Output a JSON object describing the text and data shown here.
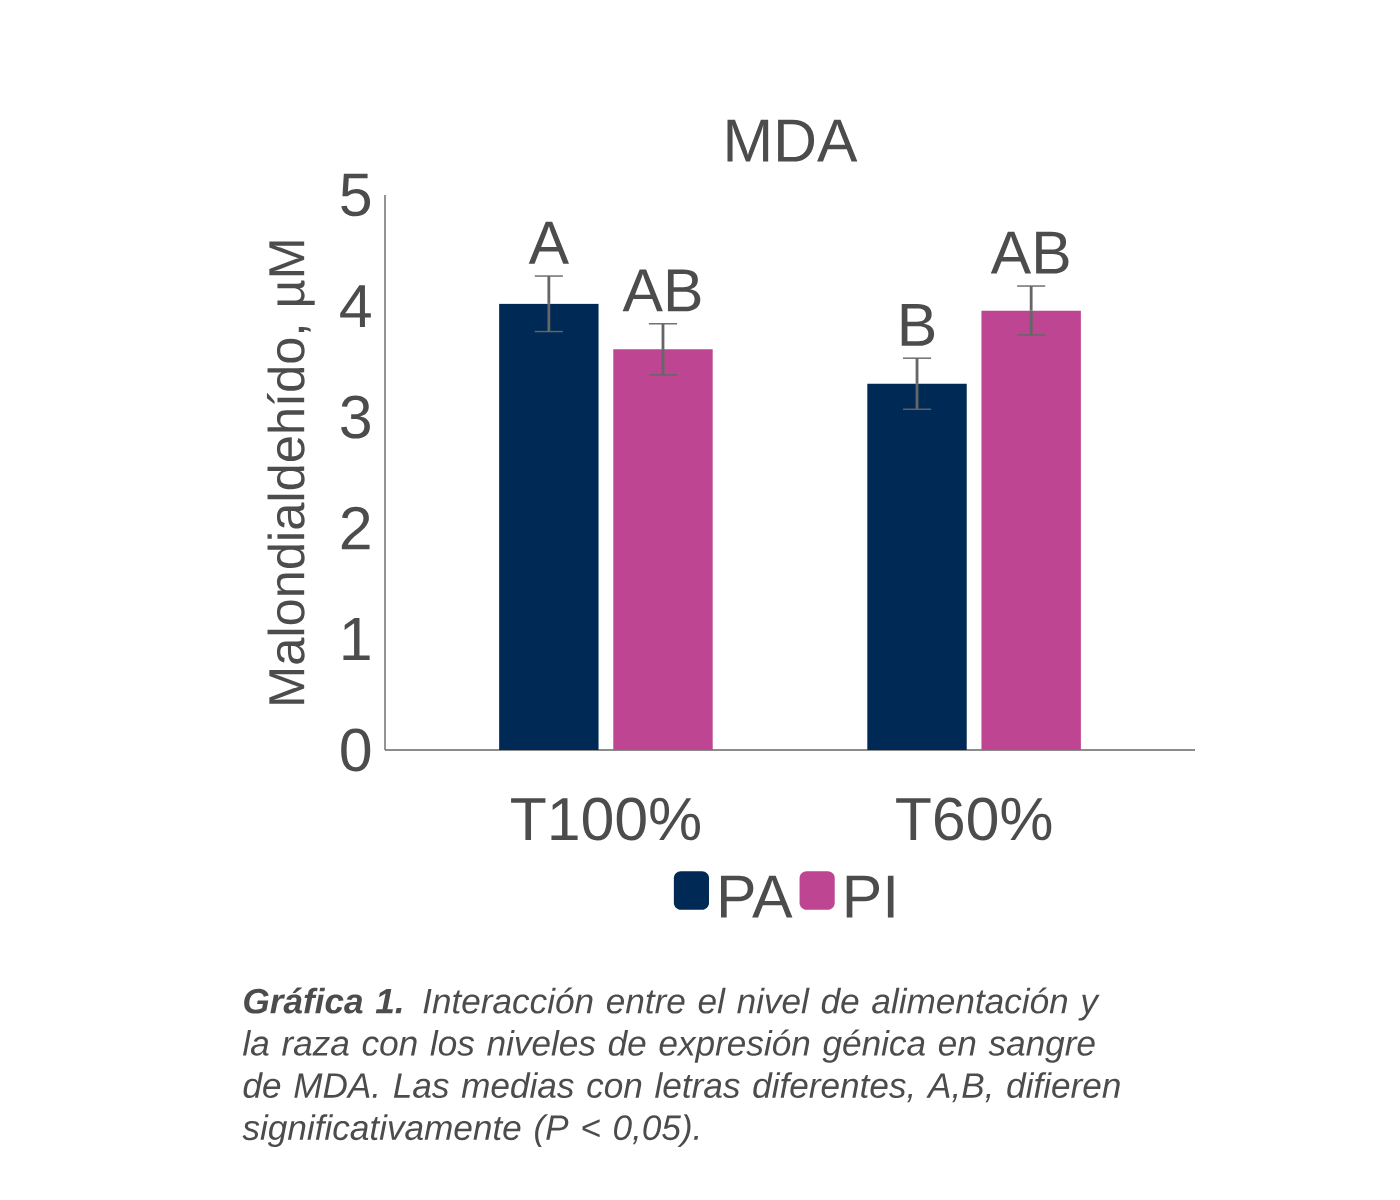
{
  "chart_data": {
    "type": "bar",
    "title": "MDA",
    "ylabel": "Malondialdehído, µM",
    "categories": [
      "T100%",
      "T60%"
    ],
    "series": [
      {
        "name": "PA",
        "color": "#002a55",
        "values": [
          4.02,
          3.3
        ],
        "errors": [
          0.25,
          0.23
        ],
        "value_labels": [
          "A",
          "B"
        ]
      },
      {
        "name": "PI",
        "color": "#bd4591",
        "values": [
          3.61,
          3.96
        ],
        "errors": [
          0.23,
          0.22
        ],
        "value_labels": [
          "AB",
          "AB"
        ]
      }
    ],
    "ylim": [
      0,
      5
    ],
    "yticks": [
      0,
      1,
      2,
      3,
      4,
      5
    ],
    "grid": false,
    "legend": "bottom",
    "annotations": [
      "**Gráfica 1.** Interacción entre el nivel de alimentación y la raza con los niveles de expresión génica en sangre de MDA. Las medias con letras diferentes, A,B, difieren significativamente (P < 0,05)."
    ]
  }
}
